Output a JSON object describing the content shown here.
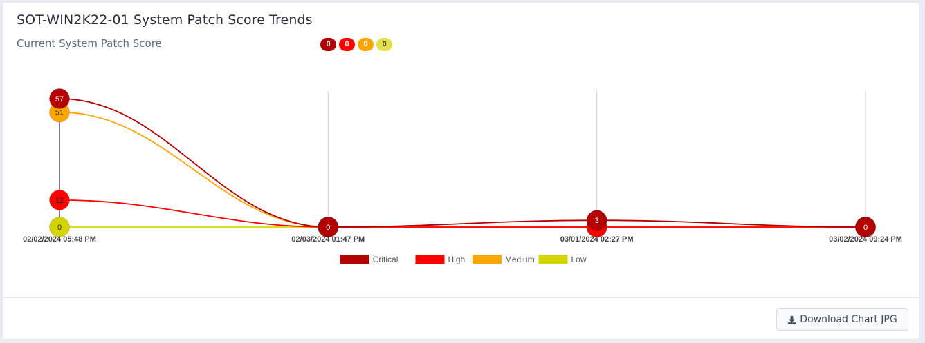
{
  "card": {
    "title": "SOT-WIN2K22-01 System Patch Score Trends",
    "subtitle": "Current System Patch Score",
    "badges": [
      {
        "value": "0",
        "color": "#b30000",
        "text_color": "#ffffff"
      },
      {
        "value": "0",
        "color": "#ff0000",
        "text_color": "#ffffff"
      },
      {
        "value": "0",
        "color": "#ffa500",
        "text_color": "#ffffff"
      },
      {
        "value": "0",
        "color": "#e3e04a",
        "text_color": "#333333"
      }
    ]
  },
  "chart_data": {
    "type": "line",
    "title": "",
    "xlabel": "",
    "ylabel": "",
    "categories": [
      "02/02/2024 05:48 PM",
      "02/03/2024 01:47 PM",
      "03/01/2024 02:27 PM",
      "03/02/2024 09:24 PM"
    ],
    "ylim": [
      0,
      57
    ],
    "grid": "vertical",
    "legend_position": "bottom",
    "series": [
      {
        "name": "Critical",
        "color": "#b30000",
        "values": [
          57,
          0,
          3,
          0
        ]
      },
      {
        "name": "High",
        "color": "#ff0000",
        "values": [
          12,
          0,
          0,
          0
        ]
      },
      {
        "name": "Medium",
        "color": "#ffa500",
        "values": [
          51,
          0,
          0,
          0
        ]
      },
      {
        "name": "Low",
        "color": "#d4d400",
        "values": [
          0,
          0,
          0,
          0
        ]
      }
    ]
  },
  "download": {
    "label": "Download Chart JPG",
    "icon": "download-icon"
  }
}
